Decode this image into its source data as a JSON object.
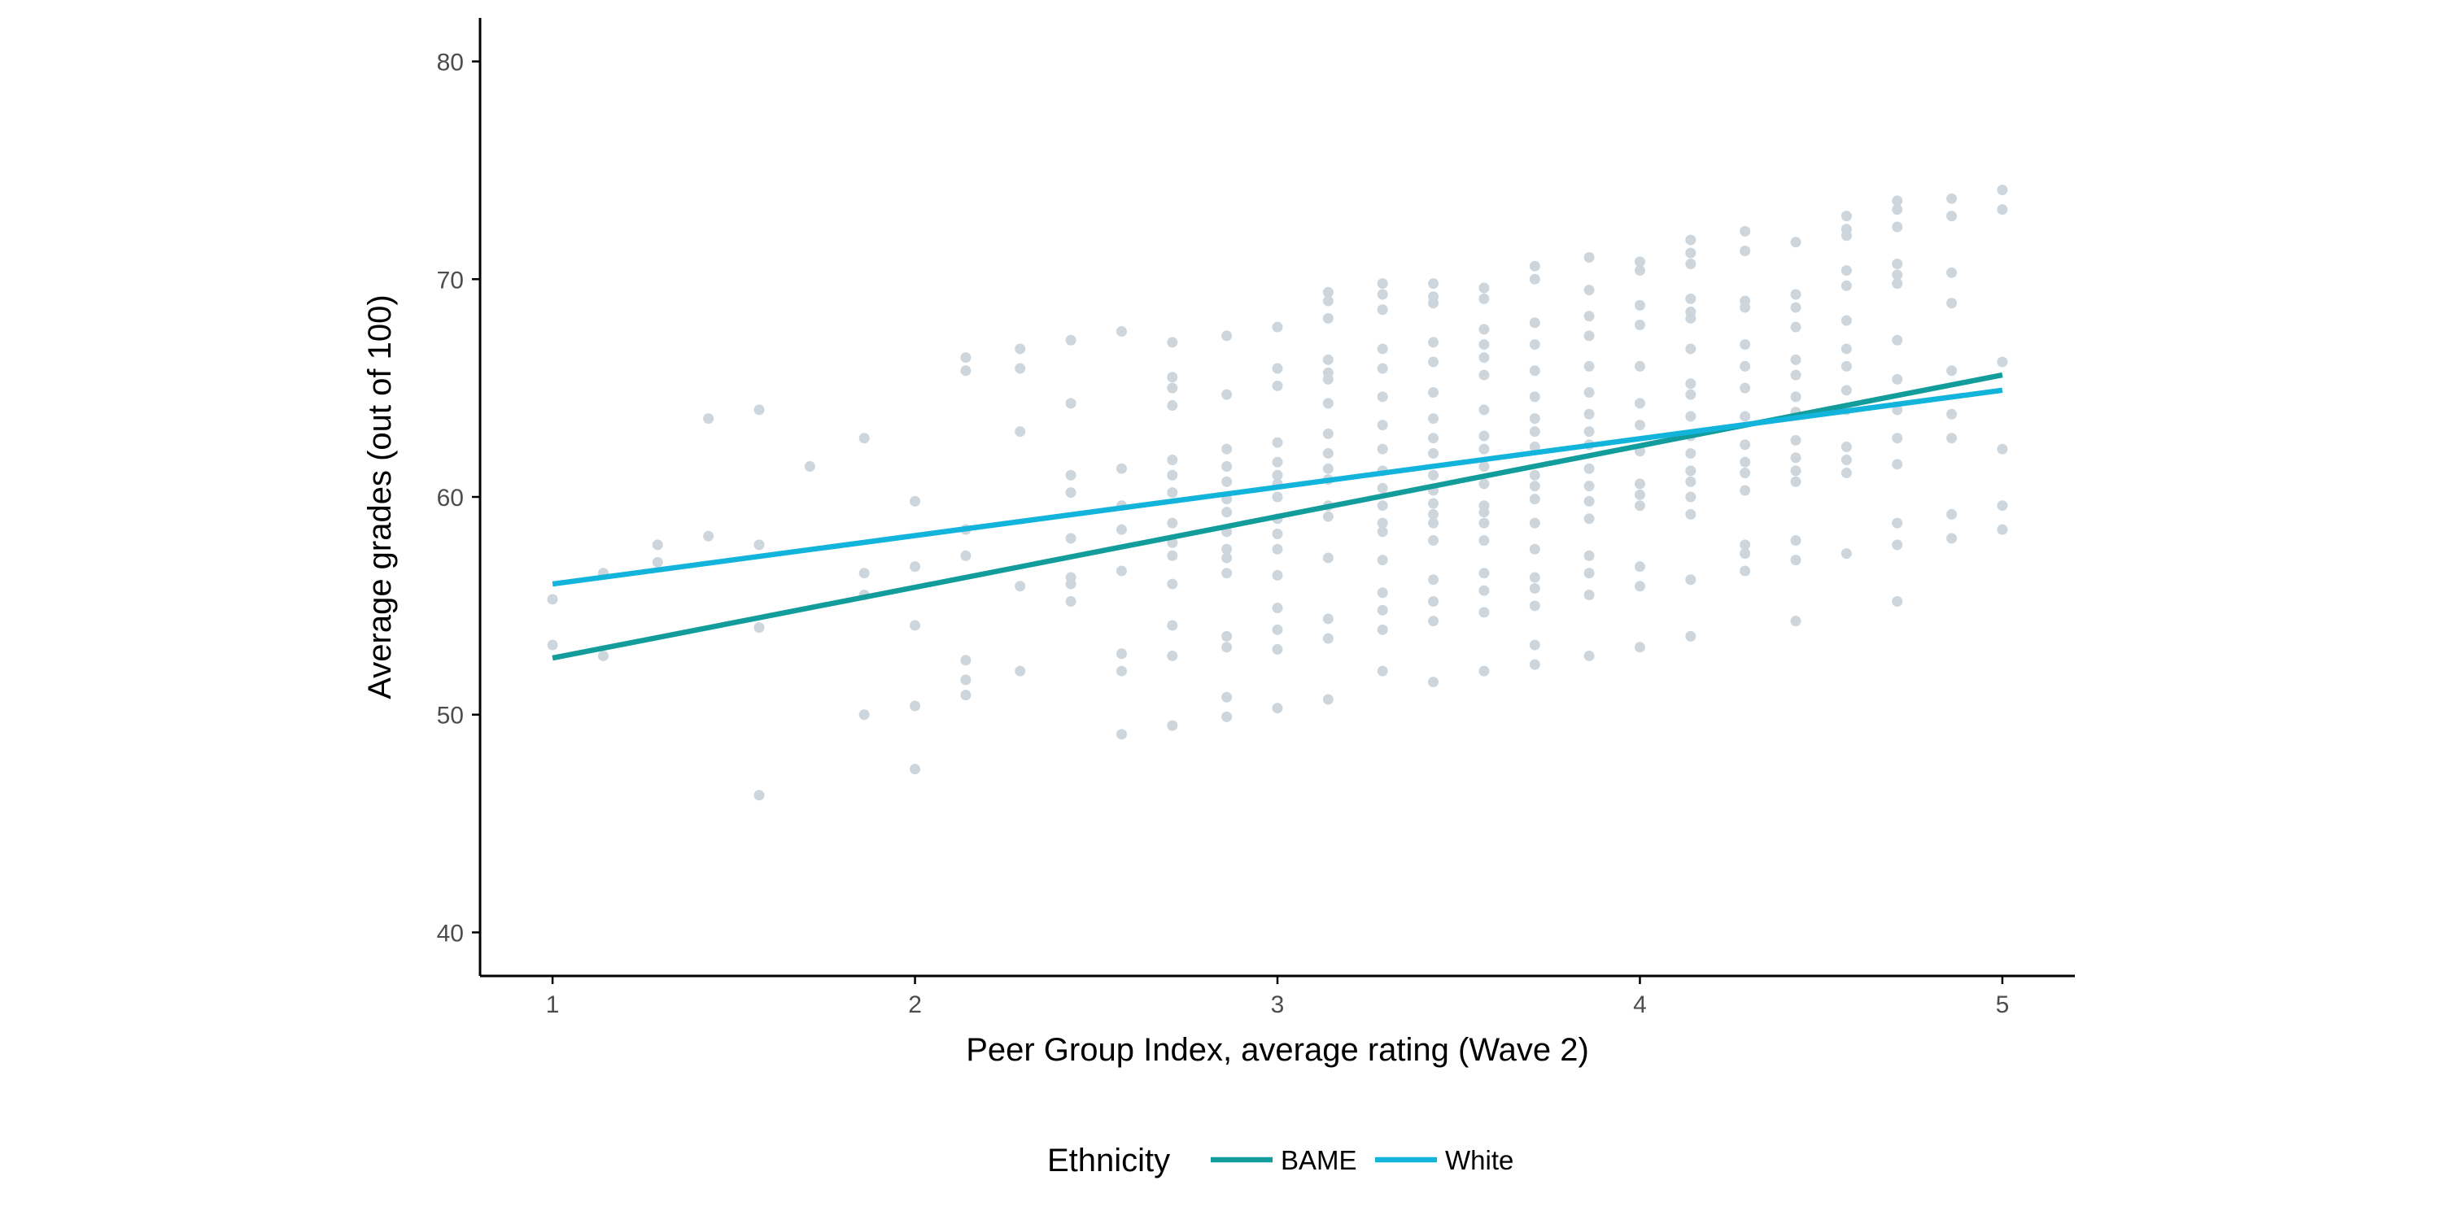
{
  "chart_data": {
    "type": "scatter",
    "title": "",
    "xlabel": "Peer Group Index, average rating (Wave 2)",
    "ylabel": "Average grades (out of 100)",
    "xlim": [
      0.8,
      5.2
    ],
    "ylim": [
      38,
      82
    ],
    "x_ticks": [
      1,
      2,
      3,
      4,
      5
    ],
    "y_ticks": [
      40,
      50,
      60,
      70,
      80
    ],
    "grid": false,
    "legend": {
      "title": "Ethnicity",
      "placement": "bottom",
      "entries": [
        "BAME",
        "White"
      ]
    },
    "colors": {
      "points": "#cdd6dc",
      "BAME": "#129c9c",
      "White": "#13b4dc",
      "axis": "#000000",
      "tick_text": "#4d4d4d"
    },
    "points": [
      [
        1.0,
        55.3
      ],
      [
        1.0,
        53.2
      ],
      [
        1.14,
        56.5
      ],
      [
        1.14,
        52.7
      ],
      [
        1.29,
        57.8
      ],
      [
        1.29,
        57.0
      ],
      [
        1.43,
        63.6
      ],
      [
        1.43,
        58.2
      ],
      [
        1.57,
        64.0
      ],
      [
        1.57,
        57.8
      ],
      [
        1.57,
        54.0
      ],
      [
        1.57,
        46.3
      ],
      [
        1.71,
        61.4
      ],
      [
        1.86,
        62.7
      ],
      [
        1.86,
        56.5
      ],
      [
        1.86,
        55.5
      ],
      [
        1.86,
        50.0
      ],
      [
        2.0,
        59.8
      ],
      [
        2.0,
        56.8
      ],
      [
        2.0,
        54.1
      ],
      [
        2.0,
        50.4
      ],
      [
        2.0,
        47.5
      ],
      [
        2.14,
        66.4
      ],
      [
        2.14,
        65.8
      ],
      [
        2.14,
        58.5
      ],
      [
        2.14,
        57.3
      ],
      [
        2.14,
        52.5
      ],
      [
        2.14,
        51.6
      ],
      [
        2.14,
        50.9
      ],
      [
        2.29,
        66.8
      ],
      [
        2.29,
        65.9
      ],
      [
        2.29,
        63.0
      ],
      [
        2.29,
        55.9
      ],
      [
        2.29,
        52.0
      ],
      [
        2.43,
        67.2
      ],
      [
        2.43,
        64.3
      ],
      [
        2.43,
        61.0
      ],
      [
        2.43,
        60.2
      ],
      [
        2.43,
        58.1
      ],
      [
        2.43,
        56.3
      ],
      [
        2.43,
        56.0
      ],
      [
        2.43,
        55.2
      ],
      [
        2.57,
        67.6
      ],
      [
        2.57,
        61.3
      ],
      [
        2.57,
        59.6
      ],
      [
        2.57,
        58.5
      ],
      [
        2.57,
        56.6
      ],
      [
        2.57,
        52.8
      ],
      [
        2.57,
        52.0
      ],
      [
        2.57,
        49.1
      ],
      [
        2.71,
        67.1
      ],
      [
        2.71,
        65.5
      ],
      [
        2.71,
        65.0
      ],
      [
        2.71,
        64.2
      ],
      [
        2.71,
        61.7
      ],
      [
        2.71,
        61.0
      ],
      [
        2.71,
        60.2
      ],
      [
        2.71,
        58.8
      ],
      [
        2.71,
        57.9
      ],
      [
        2.71,
        57.3
      ],
      [
        2.71,
        56.0
      ],
      [
        2.71,
        54.1
      ],
      [
        2.71,
        52.7
      ],
      [
        2.71,
        49.5
      ],
      [
        2.86,
        67.4
      ],
      [
        2.86,
        64.7
      ],
      [
        2.86,
        62.2
      ],
      [
        2.86,
        61.4
      ],
      [
        2.86,
        60.7
      ],
      [
        2.86,
        59.9
      ],
      [
        2.86,
        59.3
      ],
      [
        2.86,
        58.4
      ],
      [
        2.86,
        57.6
      ],
      [
        2.86,
        57.2
      ],
      [
        2.86,
        56.5
      ],
      [
        2.86,
        53.6
      ],
      [
        2.86,
        53.1
      ],
      [
        2.86,
        50.8
      ],
      [
        2.86,
        49.9
      ],
      [
        3.0,
        67.8
      ],
      [
        3.0,
        65.9
      ],
      [
        3.0,
        65.1
      ],
      [
        3.0,
        62.5
      ],
      [
        3.0,
        61.6
      ],
      [
        3.0,
        61.0
      ],
      [
        3.0,
        60.6
      ],
      [
        3.0,
        60.0
      ],
      [
        3.0,
        59.0
      ],
      [
        3.0,
        58.3
      ],
      [
        3.0,
        57.6
      ],
      [
        3.0,
        56.4
      ],
      [
        3.0,
        54.9
      ],
      [
        3.0,
        53.9
      ],
      [
        3.0,
        53.0
      ],
      [
        3.0,
        50.3
      ],
      [
        3.14,
        69.4
      ],
      [
        3.14,
        69.0
      ],
      [
        3.14,
        68.2
      ],
      [
        3.14,
        66.3
      ],
      [
        3.14,
        65.7
      ],
      [
        3.14,
        65.4
      ],
      [
        3.14,
        64.3
      ],
      [
        3.14,
        62.9
      ],
      [
        3.14,
        62.0
      ],
      [
        3.14,
        61.3
      ],
      [
        3.14,
        60.8
      ],
      [
        3.14,
        59.6
      ],
      [
        3.14,
        59.1
      ],
      [
        3.14,
        57.2
      ],
      [
        3.14,
        54.4
      ],
      [
        3.14,
        53.5
      ],
      [
        3.14,
        50.7
      ],
      [
        3.29,
        69.8
      ],
      [
        3.29,
        69.3
      ],
      [
        3.29,
        68.6
      ],
      [
        3.29,
        66.8
      ],
      [
        3.29,
        65.9
      ],
      [
        3.29,
        64.6
      ],
      [
        3.29,
        63.3
      ],
      [
        3.29,
        62.2
      ],
      [
        3.29,
        61.2
      ],
      [
        3.29,
        60.4
      ],
      [
        3.29,
        59.6
      ],
      [
        3.29,
        58.8
      ],
      [
        3.29,
        58.4
      ],
      [
        3.29,
        57.1
      ],
      [
        3.29,
        55.6
      ],
      [
        3.29,
        54.8
      ],
      [
        3.29,
        53.9
      ],
      [
        3.29,
        52.0
      ],
      [
        3.43,
        69.8
      ],
      [
        3.43,
        69.2
      ],
      [
        3.43,
        68.9
      ],
      [
        3.43,
        67.1
      ],
      [
        3.43,
        66.2
      ],
      [
        3.43,
        64.8
      ],
      [
        3.43,
        63.6
      ],
      [
        3.43,
        62.7
      ],
      [
        3.43,
        62.0
      ],
      [
        3.43,
        61.0
      ],
      [
        3.43,
        60.3
      ],
      [
        3.43,
        59.7
      ],
      [
        3.43,
        59.2
      ],
      [
        3.43,
        58.8
      ],
      [
        3.43,
        58.0
      ],
      [
        3.43,
        56.2
      ],
      [
        3.43,
        55.2
      ],
      [
        3.43,
        54.3
      ],
      [
        3.43,
        51.5
      ],
      [
        3.57,
        69.6
      ],
      [
        3.57,
        69.1
      ],
      [
        3.57,
        67.7
      ],
      [
        3.57,
        67.0
      ],
      [
        3.57,
        66.4
      ],
      [
        3.57,
        65.6
      ],
      [
        3.57,
        64.0
      ],
      [
        3.57,
        62.8
      ],
      [
        3.57,
        62.2
      ],
      [
        3.57,
        61.4
      ],
      [
        3.57,
        60.6
      ],
      [
        3.57,
        59.6
      ],
      [
        3.57,
        59.3
      ],
      [
        3.57,
        58.8
      ],
      [
        3.57,
        58.0
      ],
      [
        3.57,
        56.5
      ],
      [
        3.57,
        55.7
      ],
      [
        3.57,
        54.7
      ],
      [
        3.57,
        52.0
      ],
      [
        3.71,
        70.6
      ],
      [
        3.71,
        70.0
      ],
      [
        3.71,
        68.0
      ],
      [
        3.71,
        67.0
      ],
      [
        3.71,
        65.8
      ],
      [
        3.71,
        64.6
      ],
      [
        3.71,
        63.6
      ],
      [
        3.71,
        63.0
      ],
      [
        3.71,
        62.3
      ],
      [
        3.71,
        61.0
      ],
      [
        3.71,
        60.5
      ],
      [
        3.71,
        59.9
      ],
      [
        3.71,
        58.8
      ],
      [
        3.71,
        57.6
      ],
      [
        3.71,
        56.3
      ],
      [
        3.71,
        55.8
      ],
      [
        3.71,
        55.0
      ],
      [
        3.71,
        53.2
      ],
      [
        3.71,
        52.3
      ],
      [
        3.86,
        71.0
      ],
      [
        3.86,
        69.5
      ],
      [
        3.86,
        68.3
      ],
      [
        3.86,
        67.4
      ],
      [
        3.86,
        66.0
      ],
      [
        3.86,
        64.8
      ],
      [
        3.86,
        63.8
      ],
      [
        3.86,
        63.0
      ],
      [
        3.86,
        62.4
      ],
      [
        3.86,
        61.3
      ],
      [
        3.86,
        60.5
      ],
      [
        3.86,
        59.8
      ],
      [
        3.86,
        59.0
      ],
      [
        3.86,
        57.3
      ],
      [
        3.86,
        56.5
      ],
      [
        3.86,
        55.5
      ],
      [
        3.86,
        52.7
      ],
      [
        4.0,
        70.8
      ],
      [
        4.0,
        70.4
      ],
      [
        4.0,
        68.8
      ],
      [
        4.0,
        67.9
      ],
      [
        4.0,
        66.0
      ],
      [
        4.0,
        64.3
      ],
      [
        4.0,
        63.3
      ],
      [
        4.0,
        62.1
      ],
      [
        4.0,
        60.6
      ],
      [
        4.0,
        60.1
      ],
      [
        4.0,
        59.6
      ],
      [
        4.0,
        56.8
      ],
      [
        4.0,
        55.9
      ],
      [
        4.0,
        53.1
      ],
      [
        4.14,
        71.8
      ],
      [
        4.14,
        71.2
      ],
      [
        4.14,
        70.7
      ],
      [
        4.14,
        69.1
      ],
      [
        4.14,
        68.5
      ],
      [
        4.14,
        68.2
      ],
      [
        4.14,
        66.8
      ],
      [
        4.14,
        65.2
      ],
      [
        4.14,
        64.7
      ],
      [
        4.14,
        63.7
      ],
      [
        4.14,
        62.8
      ],
      [
        4.14,
        62.0
      ],
      [
        4.14,
        61.2
      ],
      [
        4.14,
        60.7
      ],
      [
        4.14,
        60.0
      ],
      [
        4.14,
        59.2
      ],
      [
        4.14,
        56.2
      ],
      [
        4.14,
        53.6
      ],
      [
        4.29,
        72.2
      ],
      [
        4.29,
        71.3
      ],
      [
        4.29,
        69.0
      ],
      [
        4.29,
        68.7
      ],
      [
        4.29,
        67.0
      ],
      [
        4.29,
        66.0
      ],
      [
        4.29,
        65.0
      ],
      [
        4.29,
        63.7
      ],
      [
        4.29,
        62.4
      ],
      [
        4.29,
        61.6
      ],
      [
        4.29,
        61.1
      ],
      [
        4.29,
        60.3
      ],
      [
        4.29,
        57.8
      ],
      [
        4.29,
        57.4
      ],
      [
        4.29,
        56.6
      ],
      [
        4.43,
        71.7
      ],
      [
        4.43,
        69.3
      ],
      [
        4.43,
        68.7
      ],
      [
        4.43,
        67.8
      ],
      [
        4.43,
        66.3
      ],
      [
        4.43,
        65.6
      ],
      [
        4.43,
        64.6
      ],
      [
        4.43,
        63.9
      ],
      [
        4.43,
        62.6
      ],
      [
        4.43,
        61.8
      ],
      [
        4.43,
        61.2
      ],
      [
        4.43,
        60.7
      ],
      [
        4.43,
        58.0
      ],
      [
        4.43,
        57.1
      ],
      [
        4.43,
        54.3
      ],
      [
        4.57,
        72.9
      ],
      [
        4.57,
        72.3
      ],
      [
        4.57,
        72.0
      ],
      [
        4.57,
        70.4
      ],
      [
        4.57,
        69.7
      ],
      [
        4.57,
        68.1
      ],
      [
        4.57,
        66.8
      ],
      [
        4.57,
        66.0
      ],
      [
        4.57,
        64.9
      ],
      [
        4.57,
        64.0
      ],
      [
        4.57,
        62.3
      ],
      [
        4.57,
        61.7
      ],
      [
        4.57,
        61.1
      ],
      [
        4.57,
        57.4
      ],
      [
        4.71,
        73.6
      ],
      [
        4.71,
        73.2
      ],
      [
        4.71,
        72.4
      ],
      [
        4.71,
        70.7
      ],
      [
        4.71,
        70.2
      ],
      [
        4.71,
        69.8
      ],
      [
        4.71,
        67.2
      ],
      [
        4.71,
        65.4
      ],
      [
        4.71,
        64.0
      ],
      [
        4.71,
        62.7
      ],
      [
        4.71,
        61.5
      ],
      [
        4.71,
        58.8
      ],
      [
        4.71,
        57.8
      ],
      [
        4.71,
        55.2
      ],
      [
        4.86,
        73.7
      ],
      [
        4.86,
        72.9
      ],
      [
        4.86,
        70.3
      ],
      [
        4.86,
        68.9
      ],
      [
        4.86,
        65.8
      ],
      [
        4.86,
        63.8
      ],
      [
        4.86,
        62.7
      ],
      [
        4.86,
        59.2
      ],
      [
        4.86,
        58.1
      ],
      [
        5.0,
        74.1
      ],
      [
        5.0,
        73.2
      ],
      [
        5.0,
        66.2
      ],
      [
        5.0,
        62.2
      ],
      [
        5.0,
        59.6
      ],
      [
        5.0,
        58.5
      ]
    ],
    "series": [
      {
        "name": "BAME",
        "type": "line",
        "x": [
          1,
          5
        ],
        "y": [
          52.6,
          65.6
        ]
      },
      {
        "name": "White",
        "type": "line",
        "x": [
          1,
          5
        ],
        "y": [
          56.0,
          64.9
        ]
      }
    ]
  }
}
